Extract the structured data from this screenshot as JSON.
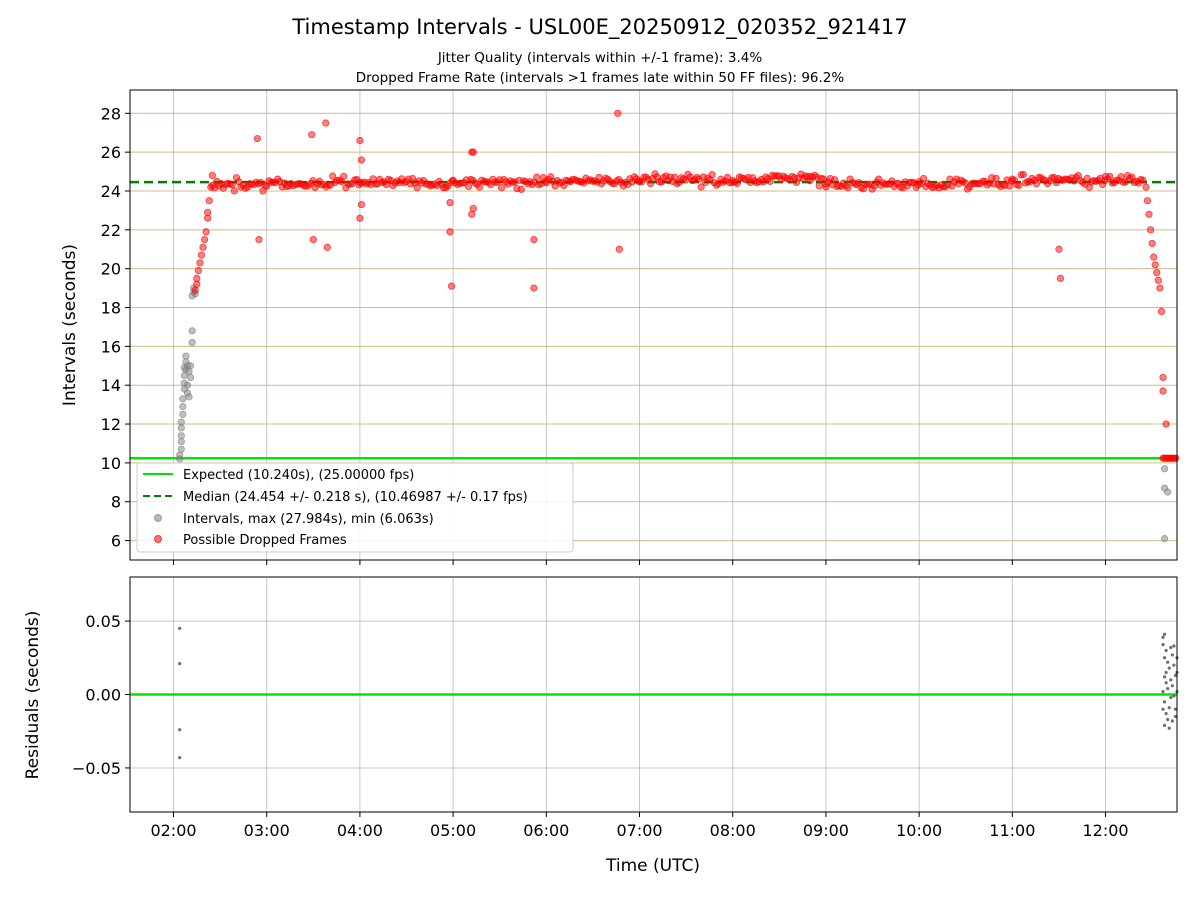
{
  "chart_data": {
    "title": "Timestamp Intervals - USL00E_20250912_020352_921417",
    "subtitle_lines": [
      "Jitter Quality (intervals within +/-1 frame): 3.4%",
      "Dropped Frame Rate (intervals >1 frames late within 50 FF files): 96.2%"
    ],
    "xlabel": "Time (UTC)",
    "x_ticks": [
      "02:00",
      "03:00",
      "04:00",
      "05:00",
      "06:00",
      "07:00",
      "08:00",
      "09:00",
      "10:00",
      "11:00",
      "12:00"
    ],
    "xlim": [
      "01:32",
      "12:46"
    ],
    "top_panel": {
      "type": "scatter",
      "ylabel": "Intervals (seconds)",
      "ylim": [
        5.0,
        29.2
      ],
      "y_ticks": [
        6,
        8,
        10,
        12,
        14,
        16,
        18,
        20,
        22,
        24,
        26,
        28
      ],
      "grid": true,
      "legend_position": "lower-left",
      "expected_line": {
        "label": "Expected (10.240s), (25.00000 fps)",
        "value": 10.24,
        "color": "#00e600"
      },
      "median_line": {
        "label": "Median (24.454 +/- 0.218 s), (10.46987 +/- 0.17 fps)",
        "value": 24.454,
        "color": "#008000"
      },
      "intervals_series": {
        "label": "Intervals, max (27.984s), min (6.063s)",
        "color": "#808080",
        "points": [
          [
            "02:04",
            10.2
          ],
          [
            "02:04",
            10.4
          ],
          [
            "02:05",
            10.7
          ],
          [
            "02:05",
            11.1
          ],
          [
            "02:05",
            11.4
          ],
          [
            "02:05",
            11.8
          ],
          [
            "02:05",
            12.1
          ],
          [
            "02:06",
            12.5
          ],
          [
            "02:06",
            12.9
          ],
          [
            "02:06",
            13.3
          ],
          [
            "02:07",
            13.8
          ],
          [
            "02:07",
            14.1
          ],
          [
            "02:07",
            14.5
          ],
          [
            "02:07",
            14.9
          ],
          [
            "02:08",
            15.2
          ],
          [
            "02:08",
            15.5
          ],
          [
            "02:08",
            14.8
          ],
          [
            "02:09",
            14.0
          ],
          [
            "02:09",
            13.6
          ],
          [
            "02:09",
            15.0
          ],
          [
            "02:10",
            14.7
          ],
          [
            "02:10",
            13.4
          ],
          [
            "02:11",
            14.4
          ],
          [
            "02:11",
            15.0
          ],
          [
            "02:12",
            16.2
          ],
          [
            "02:12",
            16.8
          ],
          [
            "02:12",
            18.6
          ],
          [
            "02:13",
            18.8
          ],
          [
            "02:13",
            19.0
          ],
          [
            "02:14",
            18.7
          ],
          [
            "12:38",
            9.7
          ],
          [
            "12:38",
            8.7
          ],
          [
            "12:40",
            8.5
          ],
          [
            "12:38",
            6.1
          ]
        ]
      },
      "dropped_series": {
        "label": "Possible Dropped Frames",
        "color": "#ff0000",
        "band_segments": [
          [
            "02:25",
            24.35
          ],
          [
            "03:00",
            24.35
          ],
          [
            "04:00",
            24.45
          ],
          [
            "05:00",
            24.4
          ],
          [
            "06:00",
            24.45
          ],
          [
            "07:00",
            24.55
          ],
          [
            "08:00",
            24.6
          ],
          [
            "08:50",
            24.7
          ],
          [
            "09:00",
            24.5
          ],
          [
            "10:00",
            24.35
          ],
          [
            "11:00",
            24.5
          ],
          [
            "12:00",
            24.55
          ],
          [
            "12:25",
            24.6
          ]
        ],
        "ramp_up": [
          [
            "02:14",
            18.9
          ],
          [
            "02:15",
            19.2
          ],
          [
            "02:15",
            19.5
          ],
          [
            "02:16",
            19.9
          ],
          [
            "02:17",
            20.3
          ],
          [
            "02:18",
            20.7
          ],
          [
            "02:19",
            21.1
          ],
          [
            "02:20",
            21.5
          ],
          [
            "02:21",
            21.9
          ],
          [
            "02:22",
            22.6
          ],
          [
            "02:22",
            22.9
          ],
          [
            "02:23",
            23.5
          ],
          [
            "02:24",
            24.2
          ],
          [
            "02:25",
            24.8
          ]
        ],
        "ramp_down": [
          [
            "12:26",
            24.2
          ],
          [
            "12:27",
            23.5
          ],
          [
            "12:28",
            22.8
          ],
          [
            "12:29",
            22.0
          ],
          [
            "12:30",
            21.3
          ],
          [
            "12:31",
            20.6
          ],
          [
            "12:32",
            20.2
          ],
          [
            "12:33",
            19.8
          ],
          [
            "12:34",
            19.4
          ],
          [
            "12:35",
            19.0
          ],
          [
            "12:36",
            17.8
          ],
          [
            "12:37",
            14.4
          ],
          [
            "12:37",
            13.7
          ],
          [
            "12:39",
            12.0
          ]
        ],
        "outliers": [
          [
            "02:54",
            26.7
          ],
          [
            "02:55",
            21.5
          ],
          [
            "03:29",
            26.9
          ],
          [
            "03:30",
            21.5
          ],
          [
            "03:38",
            27.5
          ],
          [
            "03:39",
            21.1
          ],
          [
            "04:00",
            26.6
          ],
          [
            "04:01",
            25.6
          ],
          [
            "04:01",
            23.3
          ],
          [
            "04:00",
            22.6
          ],
          [
            "04:58",
            21.9
          ],
          [
            "04:58",
            23.4
          ],
          [
            "04:59",
            19.1
          ],
          [
            "05:12",
            22.8
          ],
          [
            "05:13",
            23.1
          ],
          [
            "05:12",
            26.0
          ],
          [
            "05:13",
            26.0
          ],
          [
            "05:52",
            21.5
          ],
          [
            "05:52",
            19.0
          ],
          [
            "06:46",
            28.0
          ],
          [
            "06:47",
            21.0
          ],
          [
            "11:30",
            21.0
          ],
          [
            "11:31",
            19.5
          ]
        ],
        "low_cluster_range": [
          "12:37",
          "12:46"
        ],
        "low_cluster_value": 10.24
      }
    },
    "bottom_panel": {
      "type": "scatter",
      "ylabel": "Residuals (seconds)",
      "ylim": [
        -0.08,
        0.08
      ],
      "y_ticks": [
        -0.05,
        0.0,
        0.05
      ],
      "y_tick_labels": [
        "−0.05",
        "0.00",
        "0.05"
      ],
      "zero_line_color": "#00e600",
      "point_color": "#555555",
      "points": [
        [
          "02:04",
          0.045
        ],
        [
          "02:04",
          0.021
        ],
        [
          "02:04",
          -0.024
        ],
        [
          "02:04",
          -0.043
        ],
        [
          "12:37",
          0.039
        ],
        [
          "12:38",
          0.041
        ],
        [
          "12:37",
          0.034
        ],
        [
          "12:39",
          0.03
        ],
        [
          "12:38",
          0.025
        ],
        [
          "12:40",
          0.022
        ],
        [
          "12:41",
          0.018
        ],
        [
          "12:38",
          0.012
        ],
        [
          "12:39",
          0.008
        ],
        [
          "12:40",
          0.004
        ],
        [
          "12:37",
          0.002
        ],
        [
          "12:42",
          -0.002
        ],
        [
          "12:38",
          -0.005
        ],
        [
          "12:41",
          -0.009
        ],
        [
          "12:39",
          -0.013
        ],
        [
          "12:40",
          -0.017
        ],
        [
          "12:38",
          -0.021
        ],
        [
          "12:41",
          -0.023
        ],
        [
          "12:43",
          0.027
        ],
        [
          "12:44",
          0.02
        ],
        [
          "12:45",
          0.013
        ],
        [
          "12:43",
          0.006
        ],
        [
          "12:44",
          -0.001
        ],
        [
          "12:45",
          -0.01
        ],
        [
          "12:42",
          0.032
        ],
        [
          "12:44",
          0.033
        ],
        [
          "12:46",
          0.025
        ],
        [
          "12:46",
          0.015
        ],
        [
          "12:46",
          0.002
        ],
        [
          "12:45",
          -0.015
        ],
        [
          "12:43",
          -0.018
        ],
        [
          "12:39",
          0.015
        ],
        [
          "12:37",
          -0.01
        ],
        [
          "12:42",
          0.01
        ]
      ]
    }
  }
}
